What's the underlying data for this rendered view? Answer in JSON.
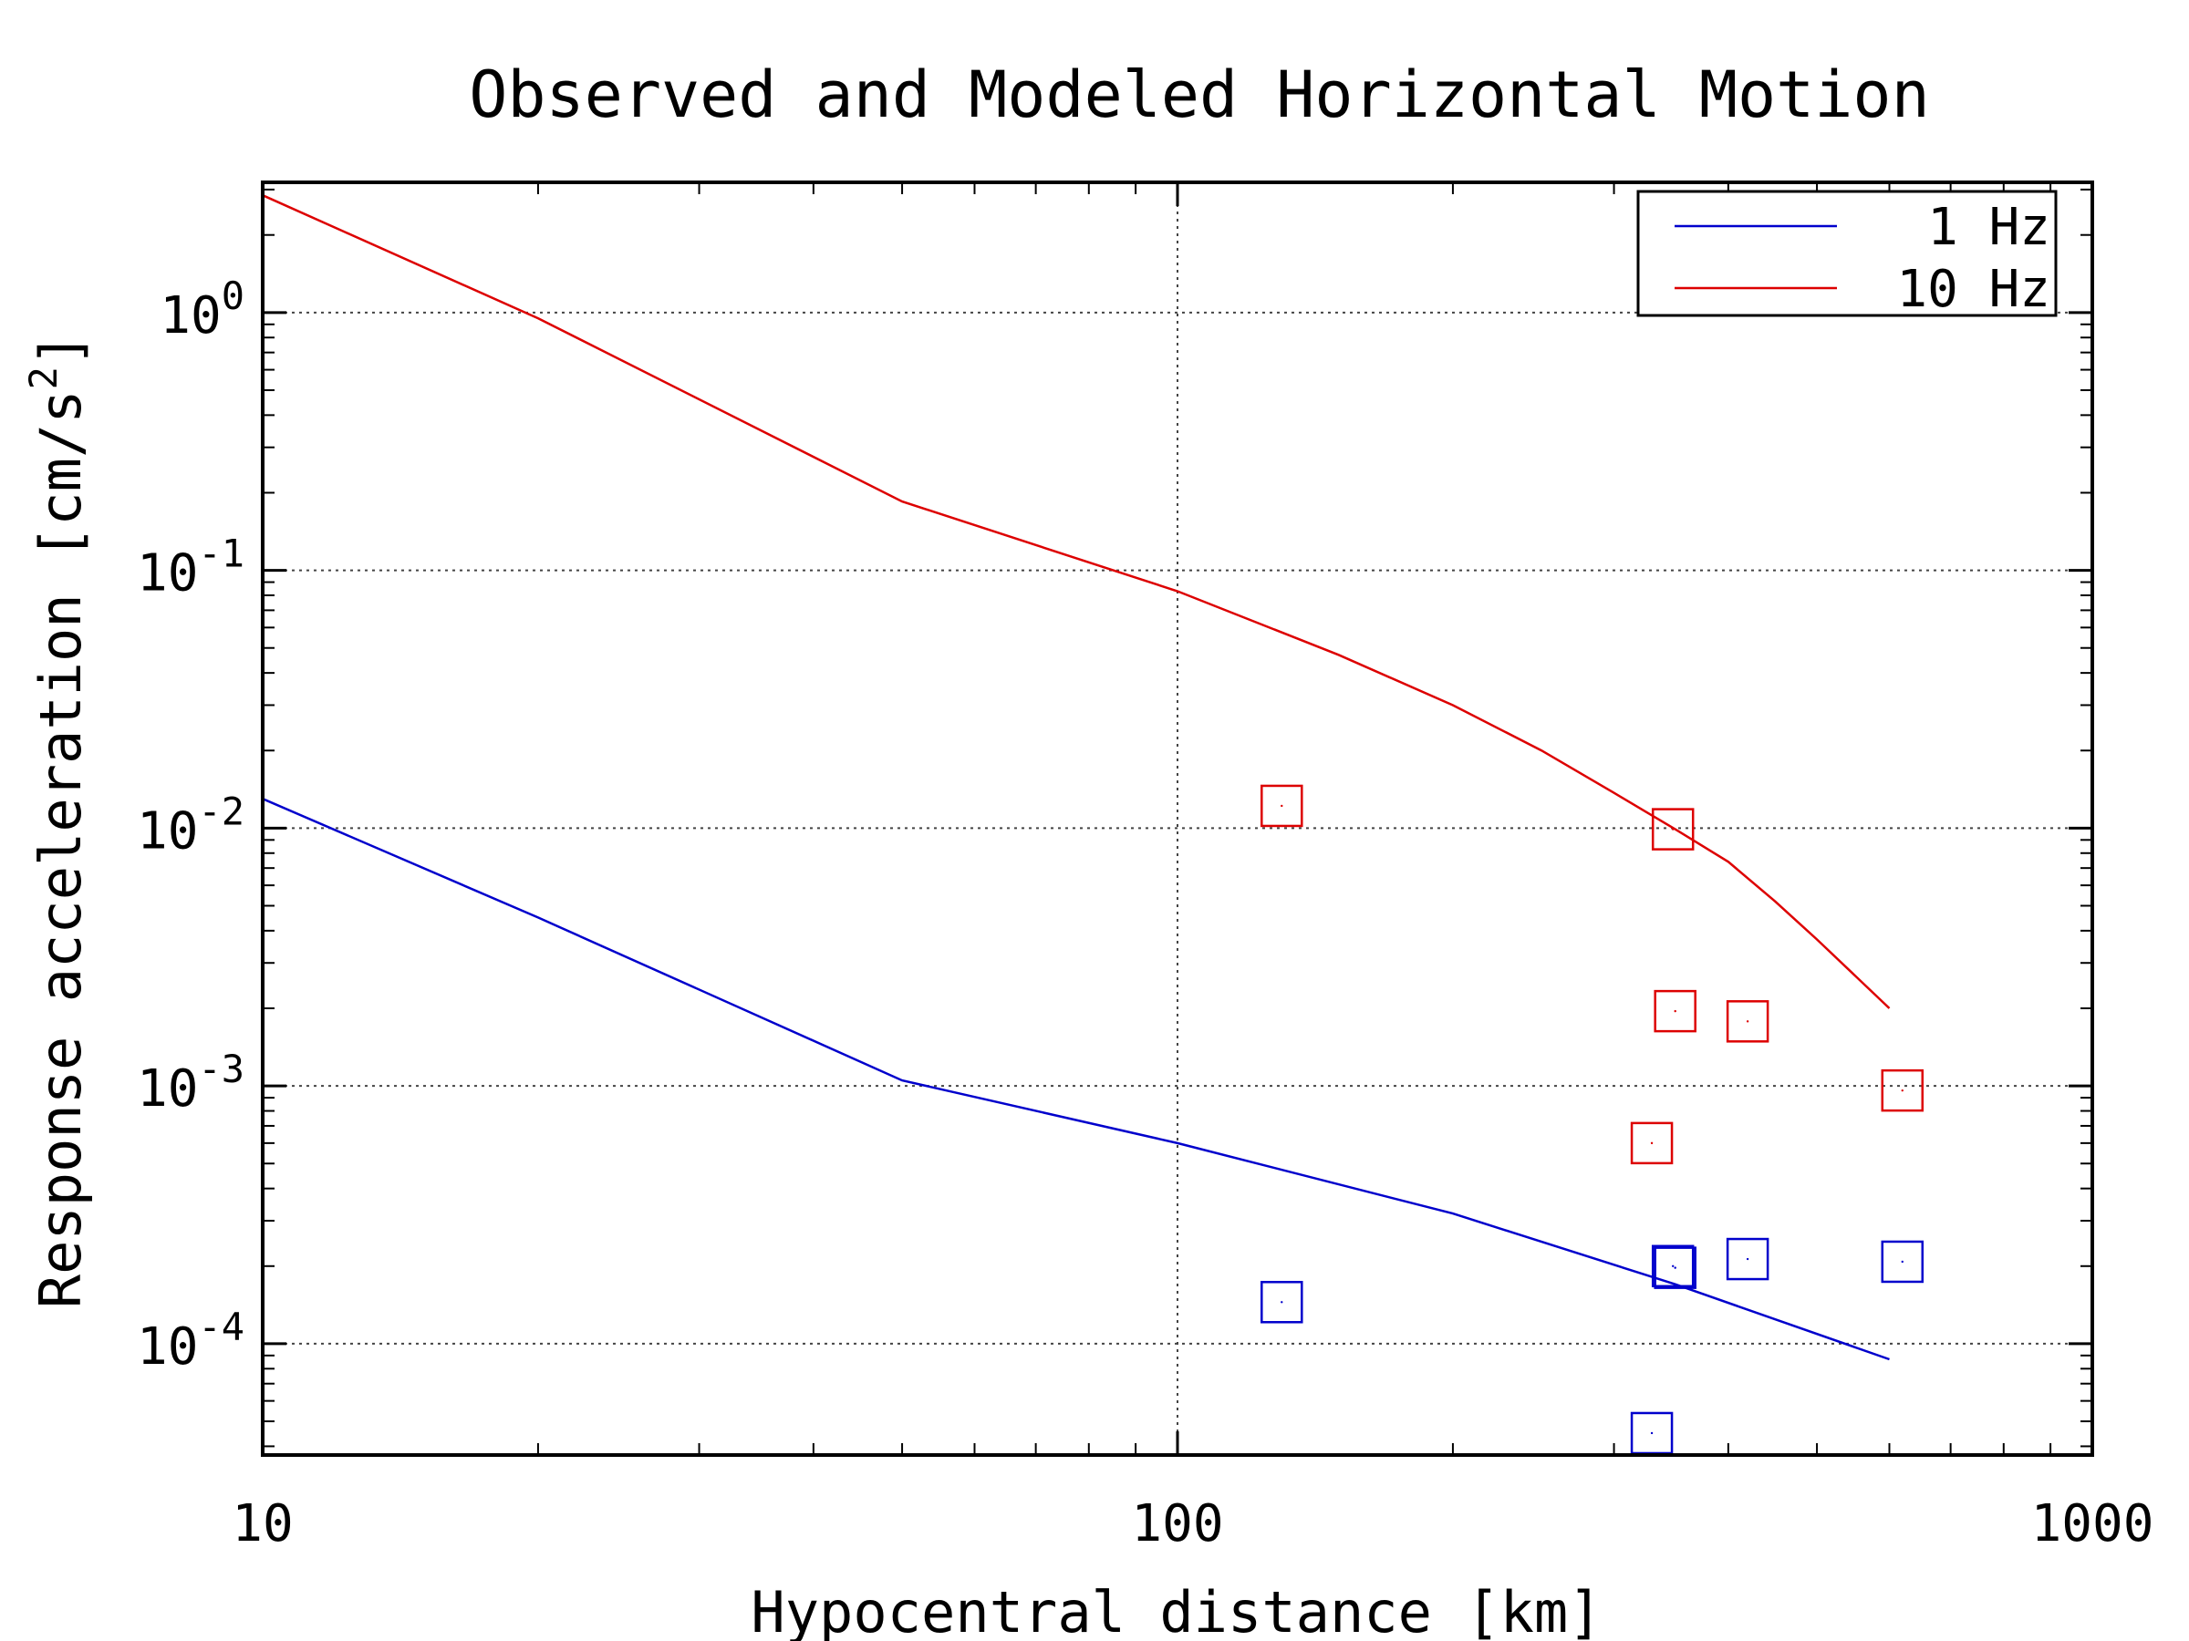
{
  "chart_data": {
    "type": "line",
    "title": "Observed and Modeled Horizontal Motion",
    "xlabel": "Hypocentral distance [km]",
    "ylabel": "Response acceleration [cm/s",
    "ylabel_superscript": "2",
    "ylabel_close": "]",
    "xscale": "log",
    "yscale": "log",
    "xlim": [
      10,
      1000
    ],
    "ylim": [
      3.7e-05,
      3.2
    ],
    "x_ticks": [
      {
        "value": 10,
        "label": "10"
      },
      {
        "value": 100,
        "label": "100"
      },
      {
        "value": 1000,
        "label": "1000"
      }
    ],
    "y_ticks": [
      {
        "value": 1,
        "base": "10",
        "exp": "0"
      },
      {
        "value": 0.1,
        "base": "10",
        "exp": "-1"
      },
      {
        "value": 0.01,
        "base": "10",
        "exp": "-2"
      },
      {
        "value": 0.001,
        "base": "10",
        "exp": "-3"
      },
      {
        "value": 0.0001,
        "base": "10",
        "exp": "-4"
      }
    ],
    "grid": true,
    "legend_position": "top-right",
    "series": [
      {
        "name": "1 Hz",
        "color": "#0000cc",
        "x": [
          10,
          20,
          50,
          100,
          200,
          350,
          600
        ],
        "y": [
          0.013,
          0.0045,
          0.00105,
          0.0006,
          0.00032,
          0.00017,
          8.7e-05
        ]
      },
      {
        "name": "10 Hz",
        "color": "#dd0000",
        "x": [
          10,
          20,
          50,
          100,
          150,
          200,
          250,
          300,
          350,
          400,
          450,
          500,
          600
        ],
        "y": [
          2.85,
          0.95,
          0.185,
          0.083,
          0.047,
          0.03,
          0.02,
          0.0137,
          0.0099,
          0.0074,
          0.0052,
          0.0037,
          0.002
        ]
      }
    ],
    "observed": [
      {
        "color": "#dd0000",
        "points": [
          {
            "x": 130,
            "y": 0.0122
          },
          {
            "x": 348,
            "y": 0.0099
          },
          {
            "x": 350,
            "y": 0.00195
          },
          {
            "x": 420,
            "y": 0.00178
          },
          {
            "x": 330,
            "y": 0.0006
          },
          {
            "x": 620,
            "y": 0.00096
          }
        ]
      },
      {
        "color": "#0000cc",
        "points": [
          {
            "x": 130,
            "y": 0.000145
          },
          {
            "x": 348,
            "y": 0.0002
          },
          {
            "x": 350,
            "y": 0.000197
          },
          {
            "x": 420,
            "y": 0.000213
          },
          {
            "x": 620,
            "y": 0.000208
          },
          {
            "x": 330,
            "y": 4.5e-05
          }
        ]
      }
    ]
  }
}
